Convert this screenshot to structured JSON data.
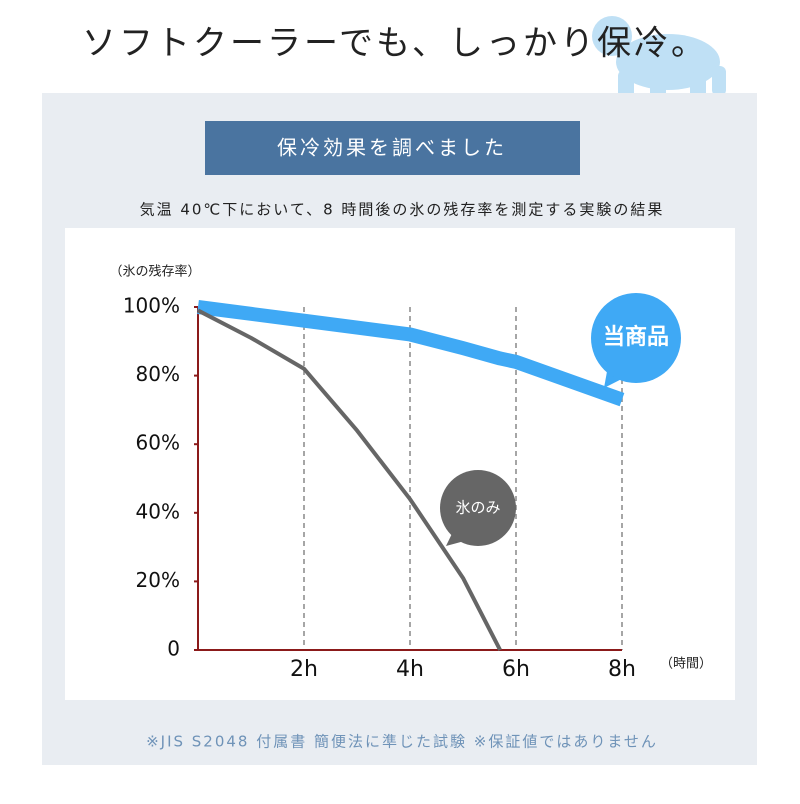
{
  "title": "ソフトクーラーでも、しっかり保冷。",
  "header": "保冷効果を調べました",
  "chart_data": {
    "type": "line",
    "subtitle": "気温 40℃下において、8 時間後の氷の残存率を測定する実験の結果",
    "y_label": "（氷の残存率）",
    "x_label": "（時間）",
    "x": [
      0,
      1,
      2,
      3,
      4,
      5,
      5.7,
      6,
      8
    ],
    "series": [
      {
        "name": "当商品",
        "color": "#3fa9f5",
        "values": [
          100,
          98,
          96,
          94,
          92,
          88,
          85,
          84,
          73
        ]
      },
      {
        "name": "氷のみ",
        "color": "#666666",
        "values": [
          99,
          91,
          82,
          64,
          44,
          21,
          0,
          null,
          null
        ]
      }
    ],
    "xlim": [
      0,
      8
    ],
    "xticks": [
      {
        "value": 2,
        "label": "2h"
      },
      {
        "value": 4,
        "label": "4h"
      },
      {
        "value": 6,
        "label": "6h"
      },
      {
        "value": 8,
        "label": "8h"
      }
    ],
    "ylim": [
      0,
      100
    ],
    "yticks": [
      0,
      {
        "value": 20,
        "label": "20%"
      },
      {
        "value": 40,
        "label": "40%"
      },
      {
        "value": 60,
        "label": "60%"
      },
      {
        "value": 80,
        "label": "80%"
      },
      {
        "value": 100,
        "label": "100%"
      }
    ],
    "grid": true
  },
  "footnote": "※JIS S2048 付属書 簡便法に準じた試験 ※保証値ではありません"
}
